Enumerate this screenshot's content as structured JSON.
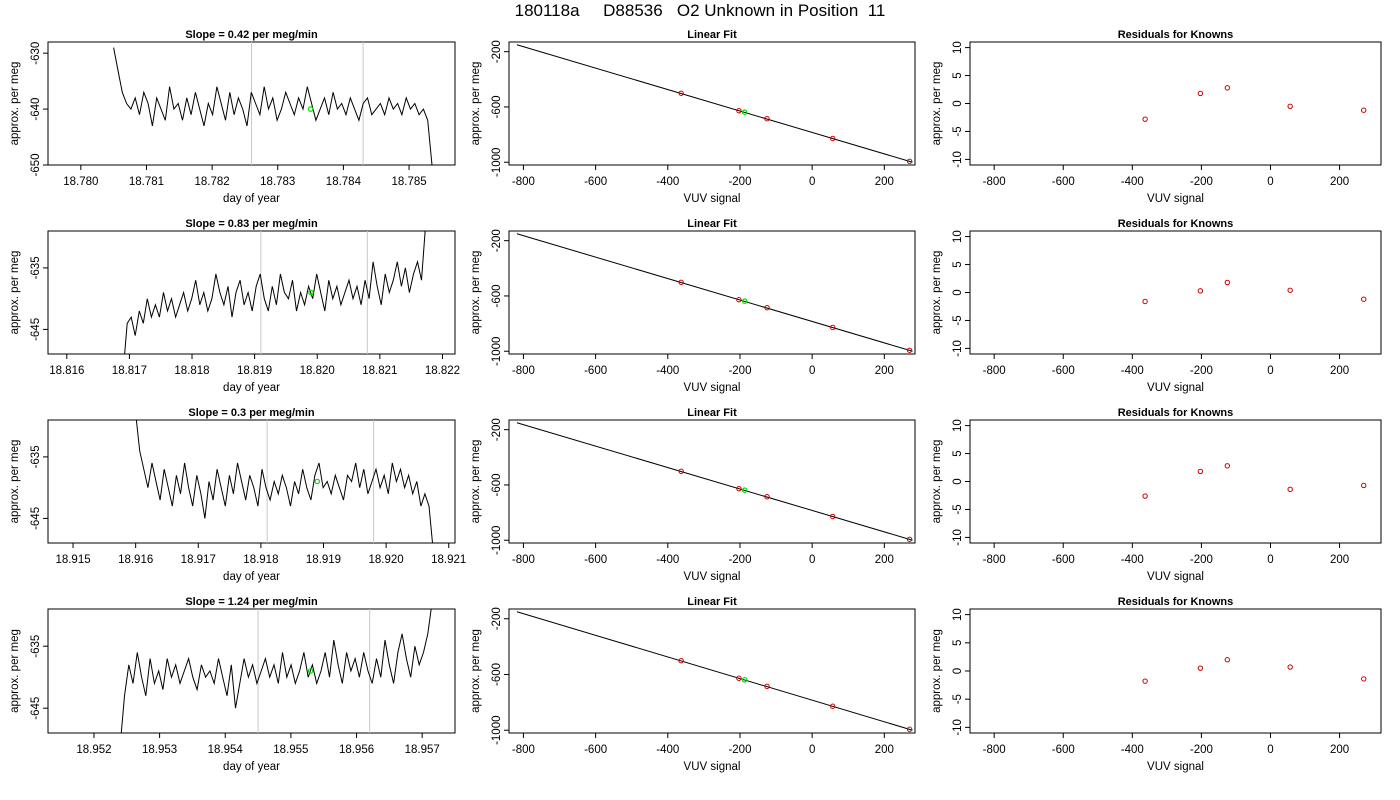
{
  "page": {
    "title": "180118a     D88536   O2 Unknown in Position  11"
  },
  "colors": {
    "axis": "#000000",
    "trace": "#000000",
    "marker_green": "#00dd00",
    "marker_red": "#cc0000",
    "vline": "#c8c8c8"
  },
  "chart_data": [
    {
      "type": "line",
      "panel": "trace",
      "row": 1,
      "title": "Slope =  0.42  per meg/min",
      "xlabel": "day of year",
      "ylabel": "approx. per meg",
      "xlim": [
        18.7795,
        18.7857
      ],
      "ylim": [
        -650,
        -628
      ],
      "xticks": [
        18.78,
        18.781,
        18.782,
        18.783,
        18.784,
        18.785
      ],
      "xtick_labels": [
        "18.780",
        "18.781",
        "18.782",
        "18.783",
        "18.784",
        "18.785"
      ],
      "yticks": [
        -650,
        -640,
        -630
      ],
      "ytick_labels": [
        "-650",
        "-640",
        "-630"
      ],
      "vlines": [
        18.7826,
        18.7843
      ],
      "marker": {
        "x": 18.7835,
        "y": -640
      },
      "series_x_range": [
        18.7805,
        18.78535
      ],
      "series": [
        -629,
        -633,
        -637,
        -639,
        -640,
        -638,
        -641,
        -637,
        -639,
        -643,
        -638,
        -640,
        -642,
        -636,
        -640,
        -639,
        -642,
        -638,
        -641,
        -637,
        -640,
        -643,
        -639,
        -641,
        -636,
        -639,
        -642,
        -637,
        -641,
        -638,
        -640,
        -643,
        -637,
        -639,
        -641,
        -636,
        -640,
        -638,
        -642,
        -640,
        -637,
        -639,
        -641,
        -638,
        -640,
        -636,
        -639,
        -642,
        -640,
        -638,
        -641,
        -637,
        -640,
        -639,
        -641,
        -638,
        -640,
        -642,
        -639,
        -638,
        -641,
        -640,
        -639,
        -641,
        -638,
        -640,
        -639,
        -641,
        -638,
        -640,
        -639,
        -641,
        -640,
        -642,
        -650
      ]
    },
    {
      "type": "scatter",
      "panel": "fit",
      "row": 1,
      "title": "Linear Fit",
      "xlabel": "VUV signal",
      "ylabel": "approx. per meg",
      "xlim": [
        -840,
        285
      ],
      "ylim": [
        -1020,
        -130
      ],
      "xticks": [
        -800,
        -600,
        -400,
        -200,
        0,
        200
      ],
      "xtick_labels": [
        "-800",
        "-600",
        "-400",
        "-200",
        "0",
        "200"
      ],
      "yticks": [
        -1000,
        -600,
        -200
      ],
      "ytick_labels": [
        "-1000",
        "-600",
        "-200"
      ],
      "fit_line": [
        [
          -818,
          -150
        ],
        [
          278,
          -1000
        ]
      ],
      "knowns": [
        [
          -363,
          -501
        ],
        [
          -203,
          -627
        ],
        [
          -125,
          -685
        ],
        [
          57,
          -828
        ],
        [
          270,
          -993
        ]
      ],
      "unknown": {
        "x": -187,
        "y": -638
      }
    },
    {
      "type": "scatter",
      "panel": "residuals",
      "row": 1,
      "title": "Residuals for Knowns",
      "xlabel": "VUV signal",
      "ylabel": "approx. per meg",
      "xlim": [
        -870,
        320
      ],
      "ylim": [
        -11,
        11
      ],
      "xticks": [
        -800,
        -600,
        -400,
        -200,
        0,
        200
      ],
      "xtick_labels": [
        "-800",
        "-600",
        "-400",
        "-200",
        "0",
        "200"
      ],
      "yticks": [
        -10,
        -5,
        0,
        5,
        10
      ],
      "ytick_labels": [
        "-10",
        "-5",
        "0",
        "5",
        "10"
      ],
      "points": [
        [
          -363,
          -2.8
        ],
        [
          -203,
          1.8
        ],
        [
          -125,
          2.8
        ],
        [
          57,
          -0.5
        ],
        [
          270,
          -1.2
        ]
      ]
    },
    {
      "type": "line",
      "panel": "trace",
      "row": 2,
      "title": "Slope =  0.83  per meg/min",
      "xlabel": "day of year",
      "ylabel": "approx. per meg",
      "xlim": [
        18.8157,
        18.8222
      ],
      "ylim": [
        -649,
        -629
      ],
      "xticks": [
        18.816,
        18.817,
        18.818,
        18.819,
        18.82,
        18.821,
        18.822
      ],
      "xtick_labels": [
        "18.816",
        "18.817",
        "18.818",
        "18.819",
        "18.820",
        "18.821",
        "18.822"
      ],
      "yticks": [
        -645,
        -635
      ],
      "ytick_labels": [
        "-645",
        "-635"
      ],
      "vlines": [
        18.8191,
        18.8208
      ],
      "marker": {
        "x": 18.8199,
        "y": -639
      },
      "series_x_range": [
        18.8169,
        18.82173
      ],
      "series": [
        -652,
        -644,
        -643,
        -646,
        -642,
        -644,
        -640,
        -643,
        -641,
        -643,
        -639,
        -642,
        -640,
        -643,
        -641,
        -639,
        -642,
        -640,
        -637,
        -641,
        -639,
        -642,
        -640,
        -636,
        -639,
        -641,
        -638,
        -643,
        -639,
        -637,
        -641,
        -639,
        -642,
        -638,
        -636,
        -640,
        -642,
        -638,
        -641,
        -636,
        -639,
        -640,
        -637,
        -642,
        -639,
        -641,
        -638,
        -640,
        -636,
        -639,
        -642,
        -637,
        -640,
        -638,
        -641,
        -639,
        -637,
        -640,
        -638,
        -641,
        -637,
        -640,
        -634,
        -638,
        -641,
        -636,
        -639,
        -637,
        -634,
        -638,
        -635,
        -639,
        -636,
        -634,
        -637,
        -628
      ]
    },
    {
      "type": "scatter",
      "panel": "fit",
      "row": 2,
      "title": "Linear Fit",
      "xlabel": "VUV signal",
      "ylabel": "approx. per meg",
      "xlim": [
        -840,
        285
      ],
      "ylim": [
        -1020,
        -130
      ],
      "xticks": [
        -800,
        -600,
        -400,
        -200,
        0,
        200
      ],
      "xtick_labels": [
        "-800",
        "-600",
        "-400",
        "-200",
        "0",
        "200"
      ],
      "yticks": [
        -1000,
        -600,
        -200
      ],
      "ytick_labels": [
        "-1000",
        "-600",
        "-200"
      ],
      "fit_line": [
        [
          -818,
          -150
        ],
        [
          278,
          -1000
        ]
      ],
      "knowns": [
        [
          -363,
          -501
        ],
        [
          -203,
          -627
        ],
        [
          -125,
          -685
        ],
        [
          57,
          -828
        ],
        [
          270,
          -993
        ]
      ],
      "unknown": {
        "x": -187,
        "y": -638
      }
    },
    {
      "type": "scatter",
      "panel": "residuals",
      "row": 2,
      "title": "Residuals for Knowns",
      "xlabel": "VUV signal",
      "ylabel": "approx. per meg",
      "xlim": [
        -870,
        320
      ],
      "ylim": [
        -11,
        11
      ],
      "xticks": [
        -800,
        -600,
        -400,
        -200,
        0,
        200
      ],
      "xtick_labels": [
        "-800",
        "-600",
        "-400",
        "-200",
        "0",
        "200"
      ],
      "yticks": [
        -10,
        -5,
        0,
        5,
        10
      ],
      "ytick_labels": [
        "-10",
        "-5",
        "0",
        "5",
        "10"
      ],
      "points": [
        [
          -363,
          -1.6
        ],
        [
          -203,
          0.3
        ],
        [
          -125,
          1.8
        ],
        [
          57,
          0.4
        ],
        [
          270,
          -1.2
        ]
      ]
    },
    {
      "type": "line",
      "panel": "trace",
      "row": 3,
      "title": "Slope =  0.3  per meg/min",
      "xlabel": "day of year",
      "ylabel": "approx. per meg",
      "xlim": [
        18.9146,
        18.9211
      ],
      "ylim": [
        -649,
        -629
      ],
      "xticks": [
        18.915,
        18.916,
        18.917,
        18.918,
        18.919,
        18.92,
        18.921
      ],
      "xtick_labels": [
        "18.915",
        "18.916",
        "18.917",
        "18.918",
        "18.919",
        "18.920",
        "18.921"
      ],
      "yticks": [
        -645,
        -635
      ],
      "ytick_labels": [
        "-645",
        "-635"
      ],
      "vlines": [
        18.9181,
        18.9198
      ],
      "marker": {
        "x": 18.9189,
        "y": -639
      },
      "series_x_range": [
        18.916,
        18.92075
      ],
      "series": [
        -628,
        -634,
        -637,
        -640,
        -636,
        -639,
        -642,
        -637,
        -640,
        -643,
        -638,
        -641,
        -636,
        -640,
        -643,
        -638,
        -641,
        -645,
        -639,
        -642,
        -637,
        -640,
        -643,
        -638,
        -641,
        -636,
        -639,
        -642,
        -638,
        -640,
        -643,
        -637,
        -640,
        -642,
        -639,
        -641,
        -638,
        -640,
        -643,
        -639,
        -641,
        -637,
        -640,
        -642,
        -638,
        -636,
        -640,
        -639,
        -641,
        -638,
        -640,
        -642,
        -638,
        -639,
        -636,
        -640,
        -637,
        -641,
        -639,
        -637,
        -640,
        -638,
        -641,
        -636,
        -639,
        -637,
        -640,
        -638,
        -641,
        -639,
        -643,
        -641,
        -643,
        -650
      ]
    },
    {
      "type": "scatter",
      "panel": "fit",
      "row": 3,
      "title": "Linear Fit",
      "xlabel": "VUV signal",
      "ylabel": "approx. per meg",
      "xlim": [
        -840,
        285
      ],
      "ylim": [
        -1020,
        -130
      ],
      "xticks": [
        -800,
        -600,
        -400,
        -200,
        0,
        200
      ],
      "xtick_labels": [
        "-800",
        "-600",
        "-400",
        "-200",
        "0",
        "200"
      ],
      "yticks": [
        -1000,
        -600,
        -200
      ],
      "ytick_labels": [
        "-1000",
        "-600",
        "-200"
      ],
      "fit_line": [
        [
          -818,
          -150
        ],
        [
          278,
          -1000
        ]
      ],
      "knowns": [
        [
          -363,
          -501
        ],
        [
          -203,
          -627
        ],
        [
          -125,
          -685
        ],
        [
          57,
          -828
        ],
        [
          270,
          -993
        ]
      ],
      "unknown": {
        "x": -187,
        "y": -638
      }
    },
    {
      "type": "scatter",
      "panel": "residuals",
      "row": 3,
      "title": "Residuals for Knowns",
      "xlabel": "VUV signal",
      "ylabel": "approx. per meg",
      "xlim": [
        -870,
        320
      ],
      "ylim": [
        -11,
        11
      ],
      "xticks": [
        -800,
        -600,
        -400,
        -200,
        0,
        200
      ],
      "xtick_labels": [
        "-800",
        "-600",
        "-400",
        "-200",
        "0",
        "200"
      ],
      "yticks": [
        -10,
        -5,
        0,
        5,
        10
      ],
      "ytick_labels": [
        "-10",
        "-5",
        "0",
        "5",
        "10"
      ],
      "points": [
        [
          -363,
          -2.6
        ],
        [
          -203,
          1.8
        ],
        [
          -125,
          2.8
        ],
        [
          57,
          -1.4
        ],
        [
          270,
          -0.7
        ]
      ]
    },
    {
      "type": "line",
      "panel": "trace",
      "row": 4,
      "title": "Slope =  1.24  per meg/min",
      "xlabel": "day of year",
      "ylabel": "approx. per meg",
      "xlim": [
        18.9513,
        18.9575
      ],
      "ylim": [
        -649,
        -629
      ],
      "xticks": [
        18.952,
        18.953,
        18.954,
        18.955,
        18.956,
        18.957
      ],
      "xtick_labels": [
        "18.952",
        "18.953",
        "18.954",
        "18.955",
        "18.956",
        "18.957"
      ],
      "yticks": [
        -645,
        -635
      ],
      "ytick_labels": [
        "-645",
        "-635"
      ],
      "vlines": [
        18.9545,
        18.9562
      ],
      "marker": {
        "x": 18.9553,
        "y": -639
      },
      "series_x_range": [
        18.9524,
        18.95715
      ],
      "series": [
        -651,
        -643,
        -638,
        -641,
        -636,
        -640,
        -643,
        -637,
        -641,
        -639,
        -642,
        -637,
        -640,
        -638,
        -641,
        -639,
        -637,
        -640,
        -642,
        -638,
        -640,
        -639,
        -641,
        -637,
        -640,
        -643,
        -638,
        -645,
        -641,
        -637,
        -640,
        -638,
        -641,
        -639,
        -637,
        -640,
        -638,
        -641,
        -636,
        -640,
        -638,
        -641,
        -639,
        -636,
        -640,
        -638,
        -641,
        -639,
        -636,
        -640,
        -634,
        -638,
        -641,
        -636,
        -639,
        -637,
        -640,
        -636,
        -639,
        -641,
        -637,
        -640,
        -634,
        -638,
        -641,
        -636,
        -633,
        -637,
        -640,
        -635,
        -638,
        -636,
        -633,
        -628
      ]
    },
    {
      "type": "scatter",
      "panel": "fit",
      "row": 4,
      "title": "Linear Fit",
      "xlabel": "VUV signal",
      "ylabel": "approx. per meg",
      "xlim": [
        -840,
        285
      ],
      "ylim": [
        -1020,
        -130
      ],
      "xticks": [
        -800,
        -600,
        -400,
        -200,
        0,
        200
      ],
      "xtick_labels": [
        "-800",
        "-600",
        "-400",
        "-200",
        "0",
        "200"
      ],
      "yticks": [
        -1000,
        -600,
        -200
      ],
      "ytick_labels": [
        "-1000",
        "-600",
        "-200"
      ],
      "fit_line": [
        [
          -818,
          -150
        ],
        [
          278,
          -1000
        ]
      ],
      "knowns": [
        [
          -363,
          -501
        ],
        [
          -203,
          -627
        ],
        [
          -125,
          -685
        ],
        [
          57,
          -828
        ],
        [
          270,
          -993
        ]
      ],
      "unknown": {
        "x": -187,
        "y": -638
      }
    },
    {
      "type": "scatter",
      "panel": "residuals",
      "row": 4,
      "title": "Residuals for Knowns",
      "xlabel": "VUV signal",
      "ylabel": "approx. per meg",
      "xlim": [
        -870,
        320
      ],
      "ylim": [
        -11,
        11
      ],
      "xticks": [
        -800,
        -600,
        -400,
        -200,
        0,
        200
      ],
      "xtick_labels": [
        "-800",
        "-600",
        "-400",
        "-200",
        "0",
        "200"
      ],
      "yticks": [
        -10,
        -5,
        0,
        5,
        10
      ],
      "ytick_labels": [
        "-10",
        "-5",
        "0",
        "5",
        "10"
      ],
      "points": [
        [
          -363,
          -1.8
        ],
        [
          -203,
          0.5
        ],
        [
          -125,
          2.0
        ],
        [
          57,
          0.7
        ],
        [
          270,
          -1.4
        ]
      ]
    }
  ]
}
